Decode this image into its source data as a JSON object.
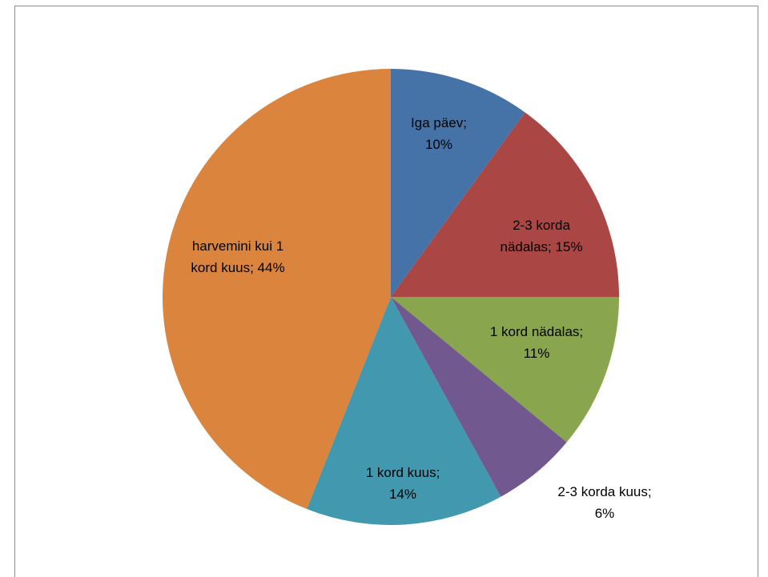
{
  "chart_data": {
    "type": "pie",
    "values": [
      10,
      15,
      11,
      6,
      14,
      44
    ],
    "value_labels": [
      "Iga päev;\n10%",
      "2-3 korda\nnädalas; 15%",
      "1 kord nädalas;\n11%",
      "2-3 korda kuus;\n6%",
      "1 kord kuus;\n14%",
      "harvemini kui 1\nkord kuus; 44%"
    ],
    "colors": [
      "#4572a7",
      "#aa4643",
      "#89a54e",
      "#71588f",
      "#4198af",
      "#db843d"
    ]
  }
}
